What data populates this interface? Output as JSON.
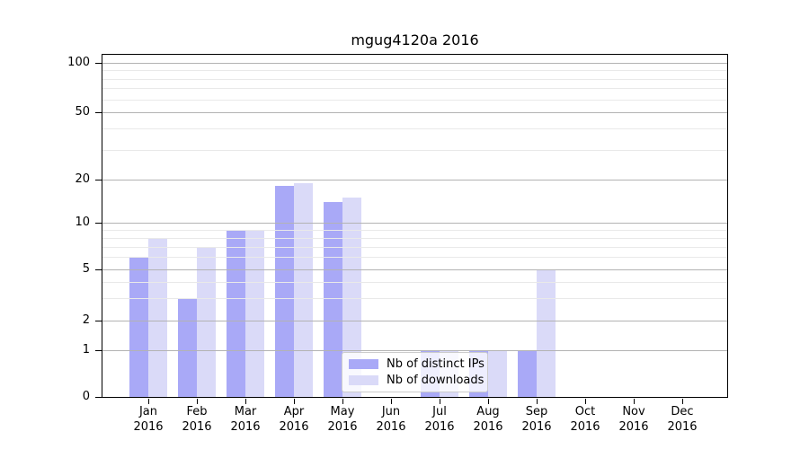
{
  "chart_data": {
    "type": "bar",
    "title": "mgug4120a 2016",
    "year": "2016",
    "months": [
      "Jan",
      "Feb",
      "Mar",
      "Apr",
      "May",
      "Jun",
      "Jul",
      "Aug",
      "Sep",
      "Oct",
      "Nov",
      "Dec"
    ],
    "categories": [
      "Jan 2016",
      "Feb 2016",
      "Mar 2016",
      "Apr 2016",
      "May 2016",
      "Jun 2016",
      "Jul 2016",
      "Aug 2016",
      "Sep 2016",
      "Oct 2016",
      "Nov 2016",
      "Dec 2016"
    ],
    "series": [
      {
        "name": "Nb of distinct IPs",
        "color": "#a9a9f7",
        "values": [
          6,
          3,
          9,
          18,
          14,
          0,
          1,
          1,
          1,
          0,
          0,
          0
        ]
      },
      {
        "name": "Nb of downloads",
        "color": "#dadaf8",
        "values": [
          8,
          7,
          9,
          19,
          15,
          0,
          1,
          1,
          5,
          0,
          0,
          0
        ]
      }
    ],
    "yaxis": {
      "scale": "symlog",
      "tick_values": [
        0,
        1,
        2,
        5,
        10,
        20,
        50,
        100
      ],
      "tick_labels": [
        "0",
        "1",
        "2",
        "5",
        "10",
        "20",
        "50",
        "100"
      ],
      "minor_gridline_values": [
        3,
        4,
        6,
        7,
        8,
        9,
        30,
        40,
        60,
        70,
        80,
        90
      ],
      "range_bottom": 0,
      "range_top_label": "100"
    },
    "legend_entries": [
      "Nb of distinct IPs",
      "Nb of downloads"
    ],
    "legend_position": "inside-lower-center",
    "grid": true
  },
  "colors": {
    "bar_distinct_ips": "#a9a9f7",
    "bar_downloads": "#dadaf8",
    "grid_major": "#b3b3b3",
    "grid_minor": "#e9e9e9",
    "axis": "#000000",
    "background": "#ffffff",
    "legend_border": "#cccccc"
  }
}
